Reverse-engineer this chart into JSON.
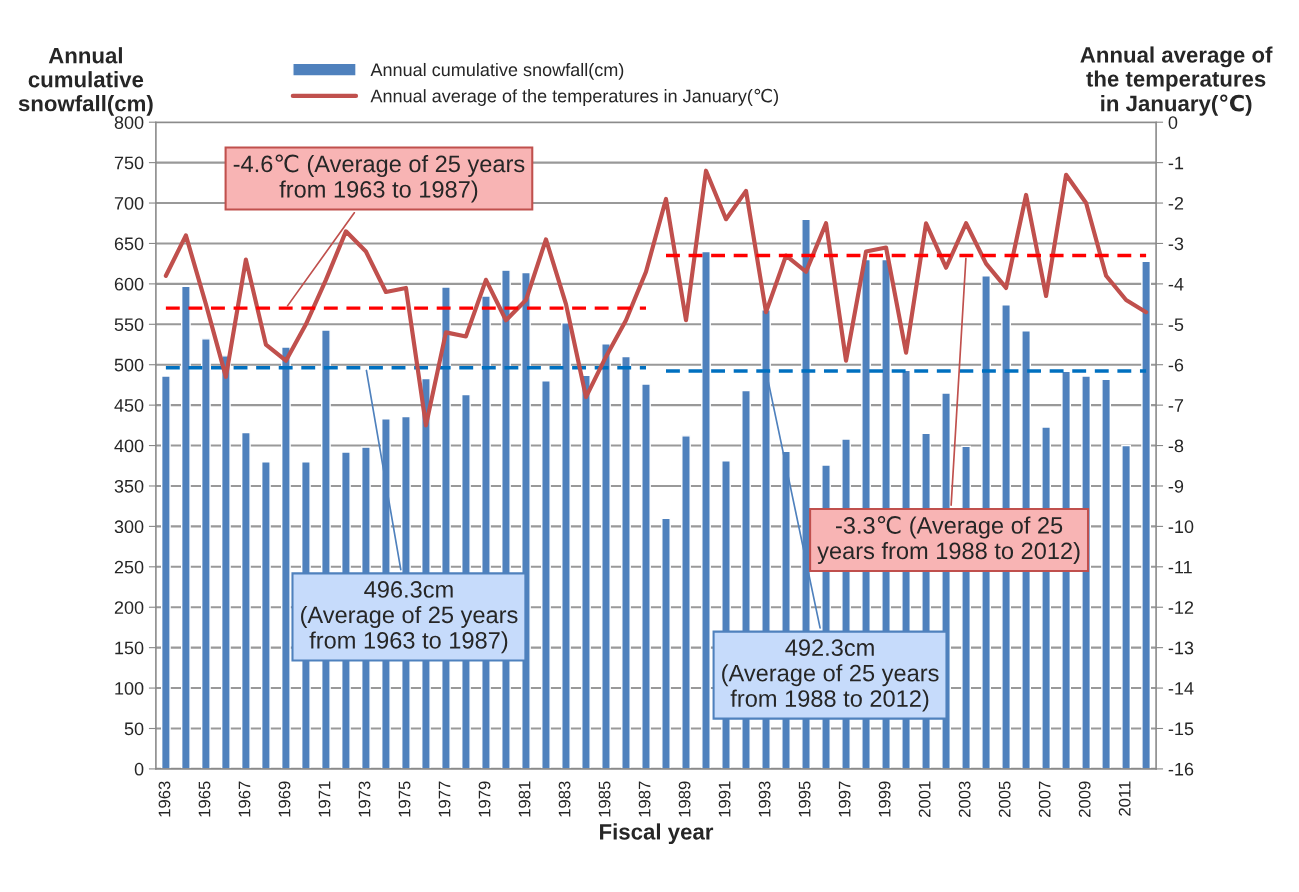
{
  "chart_data": {
    "type": "bar",
    "xlabel": "Fiscal year",
    "ylabel": "Annual\ncumulative\nsnowfall(cm)",
    "y2label": "Annual average of\nthe temperatures\nin January(℃)",
    "categories": [
      "1963",
      null,
      "1965",
      null,
      "1967",
      null,
      "1969",
      null,
      "1971",
      null,
      "1973",
      null,
      "1975",
      null,
      "1977",
      null,
      "1979",
      null,
      "1981",
      null,
      "1983",
      null,
      "1985",
      null,
      "1987",
      null,
      "1989",
      null,
      "1991",
      null,
      "1993",
      null,
      "1995",
      null,
      "1997",
      null,
      "1999",
      null,
      "2001",
      null,
      "2003",
      null,
      "2005",
      null,
      "2007",
      null,
      "2009",
      null,
      "2011",
      null
    ],
    "series": [
      {
        "name": "Annual cumulative snowfall(cm)",
        "color": "#4f81bd",
        "values": [
          486,
          597,
          532,
          511,
          416,
          380,
          522,
          380,
          543,
          392,
          398,
          433,
          436,
          483,
          596,
          463,
          585,
          617,
          614,
          480,
          552,
          487,
          526,
          510,
          476,
          310,
          412,
          640,
          381,
          468,
          568,
          393,
          680,
          376,
          408,
          630,
          630,
          493,
          415,
          465,
          399,
          610,
          574,
          542,
          423,
          492,
          486,
          482,
          400,
          628
        ]
      },
      {
        "name": "Annual average of the temperatures in January(℃)",
        "type": "line",
        "axis": "y2",
        "color": "#c0504d",
        "line_style": "solid",
        "values": [
          -3.8,
          -2.8,
          -4.5,
          -6.3,
          -3.4,
          -5.5,
          -5.9,
          -5.0,
          -3.9,
          -2.7,
          -3.2,
          -4.2,
          -4.1,
          -7.5,
          -5.2,
          -5.3,
          -3.9,
          -4.9,
          -4.4,
          -2.9,
          -4.5,
          -6.8,
          -5.8,
          -4.9,
          -3.7,
          -1.9,
          -4.9,
          -1.2,
          -2.4,
          -1.7,
          -4.7,
          -3.3,
          -3.7,
          -2.5,
          -5.9,
          -3.2,
          -3.1,
          -5.7,
          -2.5,
          -3.6,
          -2.5,
          -3.5,
          -4.1,
          -1.8,
          -4.3,
          -1.3,
          -2.0,
          -3.8,
          -4.4,
          -4.7
        ]
      },
      {
        "type": "line",
        "color": "#0070c0",
        "line_style": "dashed",
        "values": [
          496.3,
          496.3,
          496.3,
          496.3,
          496.3,
          496.3,
          496.3,
          496.3,
          496.3,
          496.3,
          496.3,
          496.3,
          496.3,
          496.3,
          496.3,
          496.3,
          496.3,
          496.3,
          496.3,
          496.3,
          496.3,
          496.3,
          496.3,
          496.3,
          496.3,
          null,
          null,
          null,
          null,
          null,
          null,
          null,
          null,
          null,
          null,
          null,
          null,
          null,
          null,
          null,
          null,
          null,
          null,
          null,
          null,
          null,
          null,
          null,
          null,
          null
        ]
      },
      {
        "type": "line",
        "color": "#0070c0",
        "line_style": "dashed",
        "values": [
          null,
          null,
          null,
          null,
          null,
          null,
          null,
          null,
          null,
          null,
          null,
          null,
          null,
          null,
          null,
          null,
          null,
          null,
          null,
          null,
          null,
          null,
          null,
          null,
          null,
          492.3,
          492.3,
          492.3,
          492.3,
          492.3,
          492.3,
          492.3,
          492.3,
          492.3,
          492.3,
          492.3,
          492.3,
          492.3,
          492.3,
          492.3,
          492.3,
          492.3,
          492.3,
          492.3,
          492.3,
          492.3,
          492.3,
          492.3,
          492.3,
          492.3
        ]
      },
      {
        "type": "line",
        "axis": "y2",
        "color": "#ff0000",
        "line_style": "dashed",
        "values": [
          -4.6,
          -4.6,
          -4.6,
          -4.6,
          -4.6,
          -4.6,
          -4.6,
          -4.6,
          -4.6,
          -4.6,
          -4.6,
          -4.6,
          -4.6,
          -4.6,
          -4.6,
          -4.6,
          -4.6,
          -4.6,
          -4.6,
          -4.6,
          -4.6,
          -4.6,
          -4.6,
          -4.6,
          -4.6,
          null,
          null,
          null,
          null,
          null,
          null,
          null,
          null,
          null,
          null,
          null,
          null,
          null,
          null,
          null,
          null,
          null,
          null,
          null,
          null,
          null,
          null,
          null,
          null,
          null
        ]
      },
      {
        "type": "line",
        "axis": "y2",
        "color": "#ff0000",
        "line_style": "dashed",
        "values": [
          null,
          null,
          null,
          null,
          null,
          null,
          null,
          null,
          null,
          null,
          null,
          null,
          null,
          null,
          null,
          null,
          null,
          null,
          null,
          null,
          null,
          null,
          null,
          null,
          null,
          -3.3,
          -3.3,
          -3.3,
          -3.3,
          -3.3,
          -3.3,
          -3.3,
          -3.3,
          -3.3,
          -3.3,
          -3.3,
          -3.3,
          -3.3,
          -3.3,
          -3.3,
          -3.3,
          -3.3,
          -3.3,
          -3.3,
          -3.3,
          -3.3,
          -3.3,
          -3.3,
          -3.3,
          -3.3
        ]
      }
    ],
    "ylim": [
      0,
      800
    ],
    "yticks": [
      0,
      50,
      100,
      150,
      200,
      250,
      300,
      350,
      400,
      450,
      500,
      550,
      600,
      650,
      700,
      750,
      800
    ],
    "y2lim": [
      -16,
      0
    ],
    "y2ticks": [
      -16,
      -15,
      -14,
      -13,
      -12,
      -11,
      -10,
      -9,
      -8,
      -7,
      -6,
      -5,
      -4,
      -3,
      -2,
      -1,
      0
    ],
    "annotations": [
      {
        "text": "-4.6℃ (Average of 25 years\nfrom 1963 to 1987)",
        "x": "1969",
        "y": 570
      },
      {
        "text": "496.3cm\n(Average of 25 years\nfrom 1963 to 1987)",
        "x": "1973",
        "y": 496.3
      },
      {
        "text": "-3.3℃ (Average of 25\nyears from 1988 to 2012)",
        "x": "2003",
        "y": 635
      },
      {
        "text": "492.3cm\n(Average of 25 years\nfrom 1988 to 2012)",
        "x": "1993",
        "y": 492.3
      }
    ],
    "grid": "y",
    "legend": "top"
  }
}
